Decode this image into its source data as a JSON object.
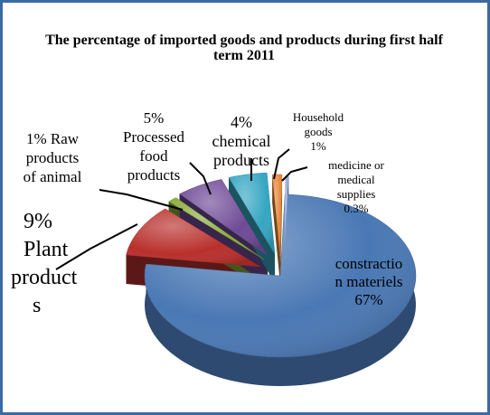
{
  "chart_data": {
    "type": "pie",
    "title": "The percentage of imported goods and products during first half term 2011",
    "slices": [
      {
        "label": "constractio n materiels",
        "value": 67,
        "value_text": "67%",
        "color": "#4a78b4"
      },
      {
        "label": "Plant product s",
        "value": 9,
        "value_text": "9%",
        "color": "#b8302c"
      },
      {
        "label": "Raw products of animal",
        "value": 1,
        "value_text": "1%",
        "color": "#8aaa38"
      },
      {
        "label": "Processed food products",
        "value": 5,
        "value_text": "5%",
        "color": "#6e4a96"
      },
      {
        "label": "chemical products",
        "value": 4,
        "value_text": "4%",
        "color": "#36a6c2"
      },
      {
        "label": "Household goods",
        "value": 1,
        "value_text": "1%",
        "color": "#e68a3c"
      },
      {
        "label": "medicine or medical supplies",
        "value": 0.3,
        "value_text": "0.3%",
        "color": "#97b0d8"
      }
    ]
  },
  "labels": {
    "constr_l1": "constractio",
    "constr_l2": "n materiels",
    "constr_l3": "67%",
    "plant_l1": "9%",
    "plant_l2": "Plant",
    "plant_l3": "product",
    "plant_l4": "s",
    "raw_l1": "1% Raw",
    "raw_l2": "products",
    "raw_l3": "of animal",
    "proc_l1": "5%",
    "proc_l2": "Processed",
    "proc_l3": "food",
    "proc_l4": "products",
    "chem_l1": "4%",
    "chem_l2": "chemical",
    "chem_l3": "products",
    "house_l1": "Household",
    "house_l2": "goods",
    "house_l3": "1%",
    "med_l1": "medicine or",
    "med_l2": "medical",
    "med_l3": "supplies",
    "med_l4": "0.3%"
  }
}
